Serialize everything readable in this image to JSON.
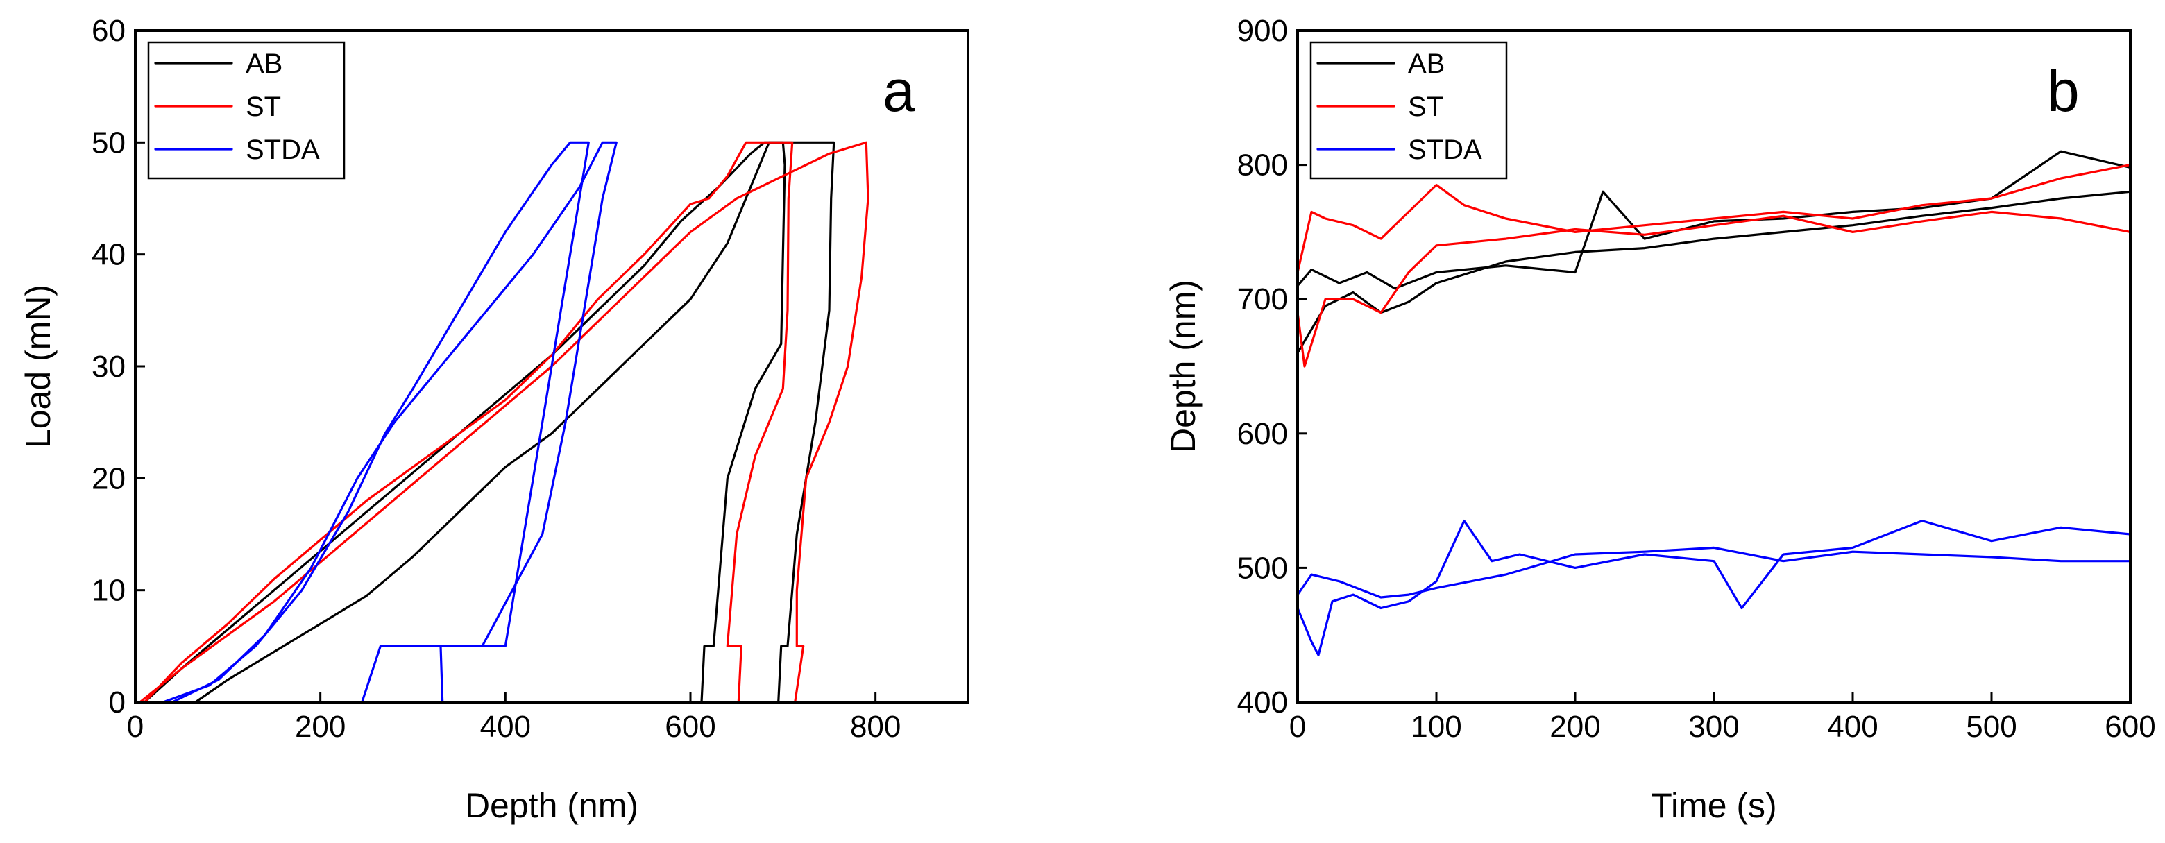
{
  "chart_data": [
    {
      "panel": "a",
      "type": "line",
      "xlabel": "Depth (nm)",
      "ylabel": "Load (mN)",
      "xlim": [
        0,
        900
      ],
      "ylim": [
        0,
        60
      ],
      "xticks": [
        0,
        200,
        400,
        600,
        800
      ],
      "yticks": [
        0,
        10,
        20,
        30,
        40,
        50,
        60
      ],
      "grid": false,
      "legend": {
        "position": "top-left",
        "entries": [
          "AB",
          "ST",
          "STDA"
        ]
      },
      "series": [
        {
          "name": "AB",
          "color": "#000000",
          "points": [
            [
              65,
              0
            ],
            [
              100,
              2
            ],
            [
              150,
              4.5
            ],
            [
              200,
              7
            ],
            [
              250,
              9.5
            ],
            [
              300,
              13
            ],
            [
              350,
              17
            ],
            [
              400,
              21
            ],
            [
              450,
              24
            ],
            [
              500,
              28
            ],
            [
              550,
              32
            ],
            [
              600,
              36
            ],
            [
              640,
              41
            ],
            [
              670,
              47
            ],
            [
              685,
              50
            ],
            [
              700,
              50
            ],
            [
              702,
              48
            ],
            [
              700,
              40
            ],
            [
              698,
              32
            ],
            [
              670,
              28
            ],
            [
              640,
              20
            ],
            [
              630,
              10
            ],
            [
              625,
              5
            ],
            [
              615,
              5
            ],
            [
              612,
              0
            ]
          ]
        },
        {
          "name": "AB",
          "color": "#000000",
          "points": [
            [
              10,
              0
            ],
            [
              50,
              3
            ],
            [
              100,
              6.5
            ],
            [
              150,
              10
            ],
            [
              200,
              13.5
            ],
            [
              250,
              17
            ],
            [
              300,
              20.5
            ],
            [
              350,
              24
            ],
            [
              400,
              27.5
            ],
            [
              450,
              31
            ],
            [
              500,
              35
            ],
            [
              550,
              39
            ],
            [
              590,
              43
            ],
            [
              630,
              46
            ],
            [
              665,
              49
            ],
            [
              680,
              50
            ],
            [
              755,
              50
            ],
            [
              752,
              45
            ],
            [
              750,
              35
            ],
            [
              735,
              25
            ],
            [
              715,
              15
            ],
            [
              710,
              10
            ],
            [
              705,
              5
            ],
            [
              698,
              5
            ],
            [
              695,
              0
            ]
          ]
        },
        {
          "name": "ST",
          "color": "#ff0000",
          "points": [
            [
              10,
              0
            ],
            [
              50,
              3.5
            ],
            [
              100,
              7
            ],
            [
              150,
              11
            ],
            [
              200,
              14.5
            ],
            [
              250,
              18
            ],
            [
              300,
              21
            ],
            [
              350,
              24
            ],
            [
              400,
              27
            ],
            [
              450,
              31
            ],
            [
              500,
              36
            ],
            [
              550,
              40
            ],
            [
              600,
              44.5
            ],
            [
              620,
              45
            ],
            [
              640,
              47
            ],
            [
              660,
              50
            ],
            [
              710,
              50
            ],
            [
              706,
              45
            ],
            [
              705,
              35
            ],
            [
              700,
              28
            ],
            [
              670,
              22
            ],
            [
              650,
              15
            ],
            [
              645,
              10
            ],
            [
              640,
              5
            ],
            [
              655,
              5
            ],
            [
              652,
              0
            ]
          ]
        },
        {
          "name": "ST",
          "color": "#ff0000",
          "points": [
            [
              5,
              0
            ],
            [
              50,
              3
            ],
            [
              100,
              6
            ],
            [
              150,
              9
            ],
            [
              200,
              12.5
            ],
            [
              250,
              16
            ],
            [
              300,
              19.5
            ],
            [
              350,
              23
            ],
            [
              400,
              26.5
            ],
            [
              450,
              30
            ],
            [
              500,
              34
            ],
            [
              550,
              38
            ],
            [
              600,
              42
            ],
            [
              650,
              45
            ],
            [
              700,
              47
            ],
            [
              750,
              49
            ],
            [
              790,
              50
            ],
            [
              792,
              45
            ],
            [
              785,
              38
            ],
            [
              770,
              30
            ],
            [
              750,
              25
            ],
            [
              725,
              20
            ],
            [
              715,
              10
            ],
            [
              715,
              5
            ],
            [
              722,
              5
            ],
            [
              713,
              0
            ]
          ]
        },
        {
          "name": "STDA",
          "color": "#0000ff",
          "points": [
            [
              30,
              0
            ],
            [
              80,
              1.5
            ],
            [
              130,
              5
            ],
            [
              180,
              10
            ],
            [
              230,
              17
            ],
            [
              270,
              24
            ],
            [
              300,
              28
            ],
            [
              350,
              35
            ],
            [
              400,
              42
            ],
            [
              450,
              48
            ],
            [
              470,
              50
            ],
            [
              490,
              50
            ],
            [
              480,
              45
            ],
            [
              460,
              35
            ],
            [
              440,
              25
            ],
            [
              420,
              15
            ],
            [
              400,
              5
            ],
            [
              330,
              5
            ],
            [
              332,
              0
            ]
          ]
        },
        {
          "name": "STDA",
          "color": "#0000ff",
          "points": [
            [
              40,
              0
            ],
            [
              90,
              2
            ],
            [
              140,
              6
            ],
            [
              190,
              12
            ],
            [
              240,
              20
            ],
            [
              280,
              25
            ],
            [
              330,
              30
            ],
            [
              380,
              35
            ],
            [
              430,
              40
            ],
            [
              480,
              46
            ],
            [
              505,
              50
            ],
            [
              520,
              50
            ],
            [
              505,
              45
            ],
            [
              485,
              35
            ],
            [
              465,
              25
            ],
            [
              440,
              15
            ],
            [
              375,
              5
            ],
            [
              265,
              5
            ],
            [
              245,
              0
            ]
          ]
        }
      ]
    },
    {
      "panel": "b",
      "type": "line",
      "xlabel": "Time (s)",
      "ylabel": "Depth (nm)",
      "xlim": [
        0,
        600
      ],
      "ylim": [
        400,
        900
      ],
      "xticks": [
        0,
        100,
        200,
        300,
        400,
        500,
        600
      ],
      "yticks": [
        400,
        500,
        600,
        700,
        800,
        900
      ],
      "grid": false,
      "legend": {
        "position": "top-left",
        "entries": [
          "AB",
          "ST",
          "STDA"
        ]
      },
      "series": [
        {
          "name": "AB",
          "color": "#000000",
          "points": [
            [
              0,
              660
            ],
            [
              20,
              695
            ],
            [
              40,
              705
            ],
            [
              60,
              690
            ],
            [
              80,
              698
            ],
            [
              100,
              712
            ],
            [
              150,
              728
            ],
            [
              200,
              735
            ],
            [
              250,
              738
            ],
            [
              300,
              745
            ],
            [
              350,
              750
            ],
            [
              400,
              755
            ],
            [
              450,
              762
            ],
            [
              500,
              768
            ],
            [
              550,
              775
            ],
            [
              600,
              780
            ]
          ]
        },
        {
          "name": "AB",
          "color": "#000000",
          "points": [
            [
              0,
              710
            ],
            [
              10,
              722
            ],
            [
              30,
              712
            ],
            [
              50,
              720
            ],
            [
              70,
              708
            ],
            [
              100,
              720
            ],
            [
              150,
              725
            ],
            [
              200,
              720
            ],
            [
              220,
              780
            ],
            [
              250,
              745
            ],
            [
              300,
              758
            ],
            [
              350,
              760
            ],
            [
              400,
              765
            ],
            [
              450,
              768
            ],
            [
              500,
              775
            ],
            [
              550,
              810
            ],
            [
              600,
              798
            ]
          ]
        },
        {
          "name": "ST",
          "color": "#ff0000",
          "points": [
            [
              0,
              720
            ],
            [
              10,
              765
            ],
            [
              20,
              760
            ],
            [
              40,
              755
            ],
            [
              60,
              745
            ],
            [
              80,
              765
            ],
            [
              100,
              785
            ],
            [
              120,
              770
            ],
            [
              150,
              760
            ],
            [
              200,
              750
            ],
            [
              250,
              755
            ],
            [
              300,
              760
            ],
            [
              350,
              765
            ],
            [
              400,
              760
            ],
            [
              450,
              770
            ],
            [
              500,
              775
            ],
            [
              550,
              790
            ],
            [
              600,
              800
            ]
          ]
        },
        {
          "name": "ST",
          "color": "#ff0000",
          "points": [
            [
              0,
              690
            ],
            [
              5,
              650
            ],
            [
              20,
              700
            ],
            [
              40,
              700
            ],
            [
              60,
              690
            ],
            [
              80,
              720
            ],
            [
              100,
              740
            ],
            [
              150,
              745
            ],
            [
              200,
              752
            ],
            [
              250,
              748
            ],
            [
              300,
              755
            ],
            [
              350,
              762
            ],
            [
              400,
              750
            ],
            [
              450,
              758
            ],
            [
              500,
              765
            ],
            [
              550,
              760
            ],
            [
              600,
              750
            ]
          ]
        },
        {
          "name": "STDA",
          "color": "#0000ff",
          "points": [
            [
              0,
              470
            ],
            [
              10,
              445
            ],
            [
              15,
              435
            ],
            [
              25,
              475
            ],
            [
              40,
              480
            ],
            [
              60,
              470
            ],
            [
              80,
              475
            ],
            [
              100,
              490
            ],
            [
              120,
              535
            ],
            [
              140,
              505
            ],
            [
              160,
              510
            ],
            [
              200,
              500
            ],
            [
              250,
              510
            ],
            [
              300,
              505
            ],
            [
              320,
              470
            ],
            [
              350,
              510
            ],
            [
              400,
              515
            ],
            [
              450,
              535
            ],
            [
              500,
              520
            ],
            [
              550,
              530
            ],
            [
              600,
              525
            ]
          ]
        },
        {
          "name": "STDA",
          "color": "#0000ff",
          "points": [
            [
              0,
              480
            ],
            [
              10,
              495
            ],
            [
              30,
              490
            ],
            [
              60,
              478
            ],
            [
              80,
              480
            ],
            [
              100,
              485
            ],
            [
              150,
              495
            ],
            [
              200,
              510
            ],
            [
              250,
              512
            ],
            [
              300,
              515
            ],
            [
              350,
              505
            ],
            [
              400,
              512
            ],
            [
              450,
              510
            ],
            [
              500,
              508
            ],
            [
              550,
              505
            ],
            [
              600,
              505
            ]
          ]
        }
      ]
    }
  ],
  "panel_labels": [
    "a",
    "b"
  ]
}
